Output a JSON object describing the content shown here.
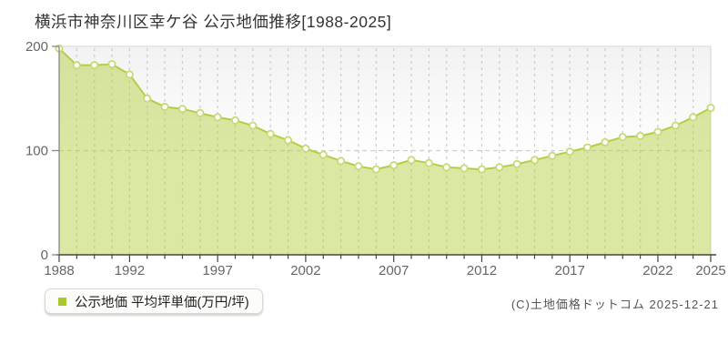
{
  "title": "横浜市神奈川区幸ケ谷 公示地価推移[1988-2025]",
  "legend": {
    "label": "公示地価 平均坪単価(万円/坪)",
    "marker_color": "#a9c72f"
  },
  "copyright": "(C)土地価格ドットコム 2025-12-21",
  "chart_data": {
    "type": "area",
    "title": "横浜市神奈川区幸ケ谷 公示地価推移[1988-2025]",
    "x": [
      1988,
      1989,
      1990,
      1991,
      1992,
      1993,
      1994,
      1995,
      1996,
      1997,
      1998,
      1999,
      2000,
      2001,
      2002,
      2003,
      2004,
      2005,
      2006,
      2007,
      2008,
      2009,
      2010,
      2011,
      2012,
      2013,
      2014,
      2015,
      2016,
      2017,
      2018,
      2019,
      2020,
      2021,
      2022,
      2023,
      2024,
      2025
    ],
    "series": [
      {
        "name": "公示地価 平均坪単価(万円/坪)",
        "values": [
          198,
          182,
          182,
          183,
          173,
          150,
          142,
          140,
          136,
          132,
          129,
          124,
          116,
          110,
          102,
          96,
          90,
          85,
          82,
          86,
          91,
          88,
          84,
          83,
          82,
          84,
          87,
          91,
          95,
          99,
          103,
          108,
          113,
          114,
          118,
          124,
          132,
          141
        ]
      }
    ],
    "xlabel": "",
    "ylabel": "万円/坪",
    "ylim": [
      0,
      200
    ],
    "yticks": [
      0,
      100,
      200
    ],
    "xticks": [
      1988,
      1992,
      1997,
      2002,
      2007,
      2012,
      2017,
      2022,
      2025
    ],
    "grid": "on",
    "legend_position": "bottom-left",
    "colors": {
      "area_fill_rgba": "rgba(178,206,62,0.48)",
      "line": "#b1ce44",
      "marker_fill": "#ffffff",
      "marker_stroke": "#c6db76",
      "grid": "#cfcfcf",
      "frame": "#e2e2e2",
      "axis_x": "#444444",
      "axis_y": "#888888",
      "tick_text": "#666666",
      "plot_bg_top": "#f2f2f2",
      "plot_bg_bottom": "#ffffff"
    }
  }
}
